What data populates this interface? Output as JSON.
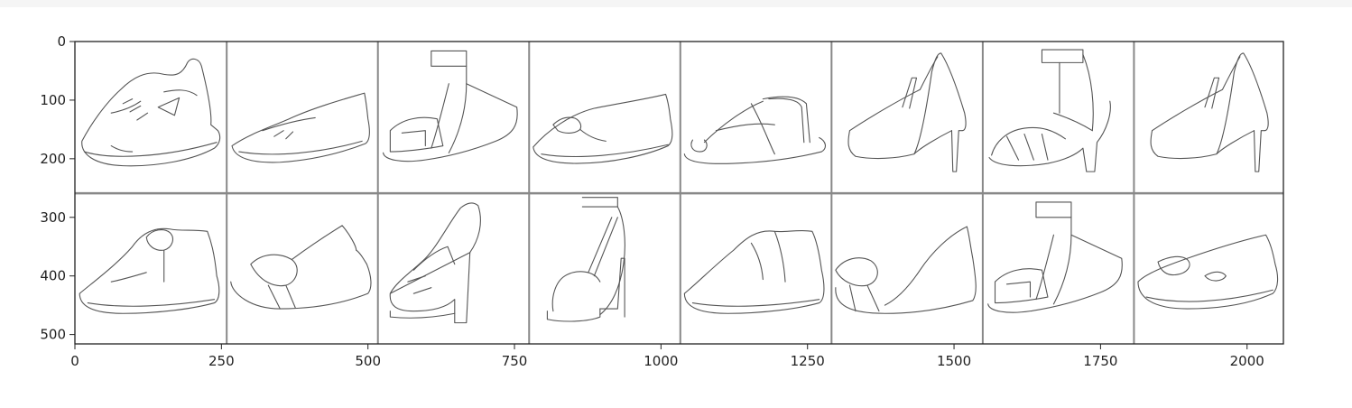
{
  "chart_data": {
    "type": "image-grid",
    "title": "",
    "xlabel": "",
    "ylabel": "",
    "image_size": [
      2062,
      516
    ],
    "grid": {
      "rows": 2,
      "cols": 8,
      "tile_px": 256,
      "padding_px": 2
    },
    "xlim": [
      0,
      2062
    ],
    "ylim": [
      516,
      0
    ],
    "xticks": [
      0,
      250,
      500,
      750,
      1000,
      1250,
      1500,
      1750,
      2000
    ],
    "xtick_labels": [
      "0",
      "250",
      "500",
      "750",
      "1000",
      "1250",
      "1500",
      "1750",
      "2000"
    ],
    "yticks": [
      0,
      100,
      200,
      300,
      400,
      500
    ],
    "ytick_labels": [
      "0",
      "100",
      "200",
      "300",
      "400",
      "500"
    ],
    "tiles": [
      {
        "row": 0,
        "col": 0,
        "icon": "sneaker-sketch"
      },
      {
        "row": 0,
        "col": 1,
        "icon": "ballet-flat-sketch"
      },
      {
        "row": 0,
        "col": 2,
        "icon": "ankle-strap-wedge-sketch"
      },
      {
        "row": 0,
        "col": 3,
        "icon": "bow-loafer-sketch"
      },
      {
        "row": 0,
        "col": 4,
        "icon": "thong-sandal-sketch"
      },
      {
        "row": 0,
        "col": 5,
        "icon": "pump-heel-sketch"
      },
      {
        "row": 0,
        "col": 6,
        "icon": "t-strap-heel-sketch"
      },
      {
        "row": 0,
        "col": 7,
        "icon": "pump-heel-sketch"
      },
      {
        "row": 1,
        "col": 0,
        "icon": "buckle-shoe-sketch"
      },
      {
        "row": 1,
        "col": 1,
        "icon": "bow-flat-sketch"
      },
      {
        "row": 1,
        "col": 2,
        "icon": "platform-heel-sketch"
      },
      {
        "row": 1,
        "col": 3,
        "icon": "ankle-strap-platform-sketch"
      },
      {
        "row": 1,
        "col": 4,
        "icon": "loafer-sketch"
      },
      {
        "row": 1,
        "col": 5,
        "icon": "bow-dorsay-flat-sketch"
      },
      {
        "row": 1,
        "col": 6,
        "icon": "ankle-strap-wedge-sketch"
      },
      {
        "row": 1,
        "col": 7,
        "icon": "slipper-sketch"
      }
    ]
  }
}
